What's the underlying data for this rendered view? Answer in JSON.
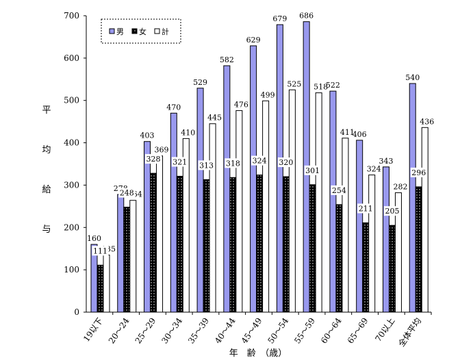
{
  "chart_data": {
    "type": "bar",
    "title": "",
    "xlabel": "年　齢　（歳）",
    "ylabel": "平均給与",
    "ylim": [
      0,
      700
    ],
    "yticks": [
      0,
      100,
      200,
      300,
      400,
      500,
      600,
      700
    ],
    "grid": false,
    "legend_position": "top-left",
    "categories": [
      "19以下",
      "20～24",
      "25～29",
      "30～34",
      "35～39",
      "40～44",
      "45～49",
      "50～54",
      "55～59",
      "60～64",
      "65～69",
      "70以上",
      "全体平均"
    ],
    "series": [
      {
        "name": "男",
        "color": "#9999ee",
        "values": [
          160,
          278,
          403,
          470,
          529,
          582,
          629,
          679,
          686,
          522,
          406,
          343,
          540
        ]
      },
      {
        "name": "女",
        "color": "#000000",
        "values": [
          111,
          248,
          328,
          321,
          313,
          318,
          324,
          320,
          301,
          254,
          211,
          205,
          296
        ]
      },
      {
        "name": "計",
        "color": "#ffffff",
        "values": [
          135,
          264,
          369,
          410,
          445,
          476,
          499,
          525,
          518,
          411,
          324,
          282,
          436
        ]
      }
    ]
  }
}
